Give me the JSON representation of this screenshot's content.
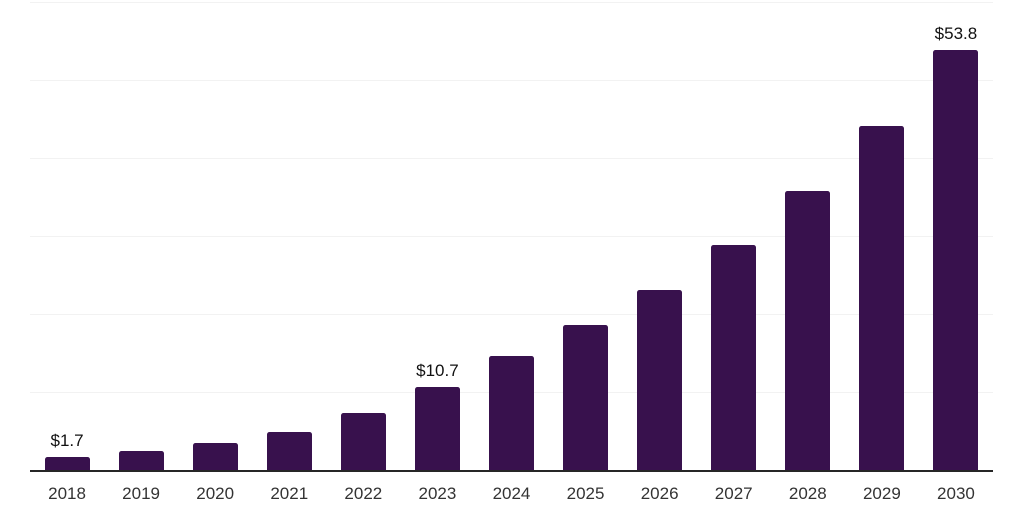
{
  "chart_data": {
    "type": "bar",
    "title": "",
    "xlabel": "",
    "ylabel": "",
    "categories": [
      "2018",
      "2019",
      "2020",
      "2021",
      "2022",
      "2023",
      "2024",
      "2025",
      "2026",
      "2027",
      "2028",
      "2029",
      "2030"
    ],
    "values": [
      1.7,
      2.4,
      3.5,
      4.9,
      7.3,
      10.7,
      14.6,
      18.6,
      23.1,
      28.9,
      35.8,
      44.1,
      53.8
    ],
    "data_labels": [
      "$1.7",
      "",
      "",
      "",
      "",
      "$10.7",
      "",
      "",
      "",
      "",
      "",
      "",
      "$53.8"
    ],
    "ylim": [
      0,
      60
    ],
    "gridline_step": 10,
    "grid": true,
    "legend": "none",
    "colors": {
      "bar": "#38114D",
      "gridline": "#f2f2f2",
      "axis_line": "#262626",
      "tick_label": "#333333",
      "data_label": "#111111",
      "background": "#ffffff"
    }
  }
}
